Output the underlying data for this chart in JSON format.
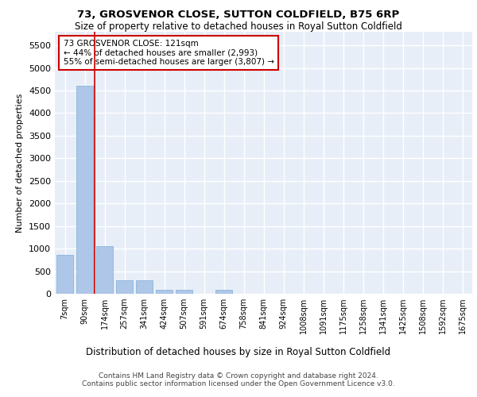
{
  "title1": "73, GROSVENOR CLOSE, SUTTON COLDFIELD, B75 6RP",
  "title2": "Size of property relative to detached houses in Royal Sutton Coldfield",
  "xlabel": "Distribution of detached houses by size in Royal Sutton Coldfield",
  "ylabel": "Number of detached properties",
  "footnote1": "Contains HM Land Registry data © Crown copyright and database right 2024.",
  "footnote2": "Contains public sector information licensed under the Open Government Licence v3.0.",
  "categories": [
    "7sqm",
    "90sqm",
    "174sqm",
    "257sqm",
    "341sqm",
    "424sqm",
    "507sqm",
    "591sqm",
    "674sqm",
    "758sqm",
    "841sqm",
    "924sqm",
    "1008sqm",
    "1091sqm",
    "1175sqm",
    "1258sqm",
    "1341sqm",
    "1425sqm",
    "1508sqm",
    "1592sqm",
    "1675sqm"
  ],
  "values": [
    870,
    4600,
    1050,
    300,
    300,
    80,
    80,
    0,
    80,
    0,
    0,
    0,
    0,
    0,
    0,
    0,
    0,
    0,
    0,
    0,
    0
  ],
  "bar_color": "#aec6e8",
  "bar_edge_color": "#7aafd4",
  "ylim": [
    0,
    5800
  ],
  "yticks": [
    0,
    500,
    1000,
    1500,
    2000,
    2500,
    3000,
    3500,
    4000,
    4500,
    5000,
    5500
  ],
  "property_line_x": 1.5,
  "annotation_text": "73 GROSVENOR CLOSE: 121sqm\n← 44% of detached houses are smaller (2,993)\n55% of semi-detached houses are larger (3,807) →",
  "annotation_box_color": "#cc0000",
  "background_color": "#e8eef8",
  "grid_color": "#ffffff"
}
